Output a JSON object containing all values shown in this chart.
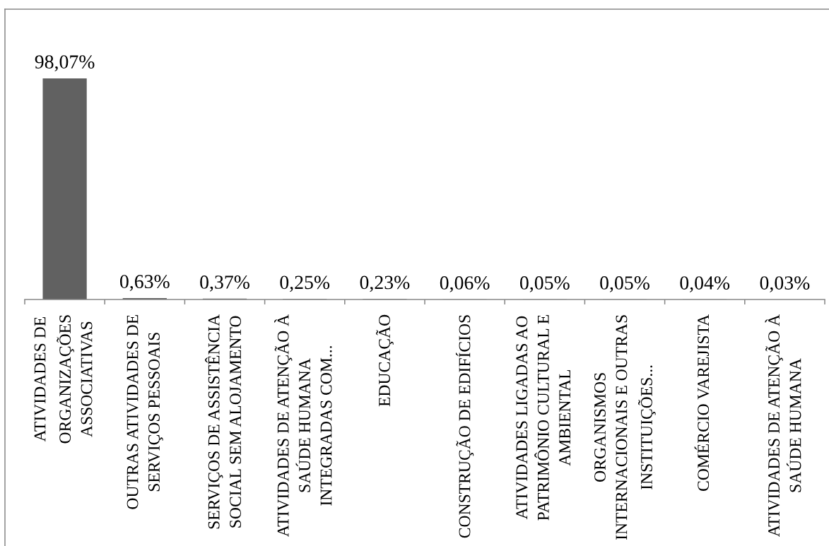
{
  "chart_data": {
    "type": "bar",
    "categories": [
      "ATIVIDADES DE\nORGANIZAÇÕES\nASSOCIATIVAS",
      "OUTRAS ATIVIDADES DE\nSERVIÇOS PESSOAIS",
      "SERVIÇOS DE ASSISTÊNCIA\nSOCIAL SEM ALOJAMENTO",
      "ATIVIDADES DE ATENÇÃO À\nSAÚDE HUMANA\nINTEGRADAS COM...",
      "EDUCAÇÃO",
      "CONSTRUÇÃO DE EDIFÍCIOS",
      "ATIVIDADES LIGADAS AO\nPATRIMÔNIO CULTURAL E\nAMBIENTAL",
      "ORGANISMOS\nINTERNACIONAIS E OUTRAS\nINSTITUIÇÕES...",
      "COMÉRCIO VAREJISTA",
      "ATIVIDADES DE ATENÇÃO À\nSAÚDE HUMANA"
    ],
    "values": [
      98.07,
      0.63,
      0.37,
      0.25,
      0.23,
      0.06,
      0.05,
      0.05,
      0.04,
      0.03
    ],
    "value_labels": [
      "98,07%",
      "0,63%",
      "0,37%",
      "0,25%",
      "0,23%",
      "0,06%",
      "0,05%",
      "0,05%",
      "0,04%",
      "0,03%"
    ],
    "color": "#616161",
    "tick_labels": "x"
  }
}
